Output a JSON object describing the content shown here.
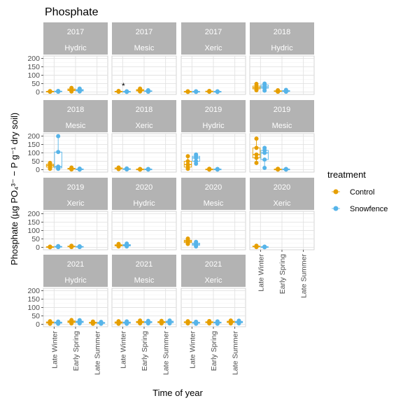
{
  "chart_data": {
    "type": "box",
    "title": "Phosphate",
    "xlabel": "Time of year",
    "ylabel": "Phosphate (µg PO₄³⁻ − P g⁻¹ dry soil)",
    "categories": [
      "Late Winter",
      "Early Spring",
      "Late Summer"
    ],
    "y_ticks": [
      0,
      50,
      100,
      150,
      200
    ],
    "ylim": [
      -15,
      215
    ],
    "grid": true,
    "legend": {
      "title": "treatment",
      "position": "right",
      "entries": [
        {
          "name": "Control",
          "color": "#E69F00"
        },
        {
          "name": "Snowfence",
          "color": "#56B4E9"
        }
      ]
    },
    "panels": [
      {
        "year": "2017",
        "site": "Hydric",
        "boxes": [
          {
            "category": "Late Winter",
            "treatment": "Control",
            "min": 1,
            "q1": 2,
            "median": 3,
            "q3": 4,
            "max": 5
          },
          {
            "category": "Late Winter",
            "treatment": "Snowfence",
            "min": 1,
            "q1": 2,
            "median": 3,
            "q3": 5,
            "max": 6
          },
          {
            "category": "Early Spring",
            "treatment": "Control",
            "min": 3,
            "q1": 8,
            "median": 12,
            "q3": 18,
            "max": 24
          },
          {
            "category": "Early Spring",
            "treatment": "Snowfence",
            "min": 3,
            "q1": 6,
            "median": 10,
            "q3": 14,
            "max": 20
          }
        ]
      },
      {
        "year": "2017",
        "site": "Mesic",
        "annotation": {
          "text": "*",
          "category": "Late Winter"
        },
        "boxes": [
          {
            "category": "Late Winter",
            "treatment": "Control",
            "min": 1,
            "q1": 2,
            "median": 3,
            "q3": 4,
            "max": 6
          },
          {
            "category": "Late Winter",
            "treatment": "Snowfence",
            "min": 0,
            "q1": 1,
            "median": 2,
            "q3": 3,
            "max": 4
          },
          {
            "category": "Early Spring",
            "treatment": "Control",
            "min": 3,
            "q1": 6,
            "median": 10,
            "q3": 14,
            "max": 20
          },
          {
            "category": "Early Spring",
            "treatment": "Snowfence",
            "min": 1,
            "q1": 3,
            "median": 5,
            "q3": 7,
            "max": 10
          }
        ]
      },
      {
        "year": "2017",
        "site": "Xeric",
        "boxes": [
          {
            "category": "Late Winter",
            "treatment": "Control",
            "min": 0,
            "q1": 1,
            "median": 2,
            "q3": 3,
            "max": 4
          },
          {
            "category": "Late Winter",
            "treatment": "Snowfence",
            "min": 0,
            "q1": 1,
            "median": 2,
            "q3": 3,
            "max": 4
          },
          {
            "category": "Early Spring",
            "treatment": "Control",
            "min": 1,
            "q1": 2,
            "median": 3,
            "q3": 5,
            "max": 6
          },
          {
            "category": "Early Spring",
            "treatment": "Snowfence",
            "min": 0,
            "q1": 1,
            "median": 2,
            "q3": 3,
            "max": 4
          }
        ]
      },
      {
        "year": "2018",
        "site": "Hydric",
        "boxes": [
          {
            "category": "Late Winter",
            "treatment": "Control",
            "min": 10,
            "q1": 18,
            "median": 25,
            "q3": 35,
            "max": 48
          },
          {
            "category": "Late Winter",
            "treatment": "Snowfence",
            "min": 8,
            "q1": 22,
            "median": 30,
            "q3": 42,
            "max": 50
          },
          {
            "category": "Early Spring",
            "treatment": "Control",
            "min": 1,
            "q1": 3,
            "median": 5,
            "q3": 7,
            "max": 10
          },
          {
            "category": "Early Spring",
            "treatment": "Snowfence",
            "min": 1,
            "q1": 3,
            "median": 5,
            "q3": 8,
            "max": 12
          }
        ]
      },
      {
        "year": "2018",
        "site": "Mesic",
        "boxes": [
          {
            "category": "Late Winter",
            "treatment": "Control",
            "min": 5,
            "q1": 15,
            "median": 25,
            "q3": 32,
            "max": 40
          },
          {
            "category": "Late Winter",
            "treatment": "Snowfence",
            "min": 5,
            "q1": 10,
            "median": 18,
            "q3": 105,
            "max": 200
          },
          {
            "category": "Early Spring",
            "treatment": "Control",
            "min": 1,
            "q1": 3,
            "median": 5,
            "q3": 8,
            "max": 12
          },
          {
            "category": "Early Spring",
            "treatment": "Snowfence",
            "min": 0,
            "q1": 1,
            "median": 3,
            "q3": 4,
            "max": 6
          }
        ]
      },
      {
        "year": "2018",
        "site": "Xeric",
        "boxes": [
          {
            "category": "Late Winter",
            "treatment": "Control",
            "min": 3,
            "q1": 5,
            "median": 8,
            "q3": 10,
            "max": 12
          },
          {
            "category": "Late Winter",
            "treatment": "Snowfence",
            "min": 1,
            "q1": 2,
            "median": 4,
            "q3": 5,
            "max": 7
          },
          {
            "category": "Early Spring",
            "treatment": "Control",
            "min": 0,
            "q1": 1,
            "median": 2,
            "q3": 3,
            "max": 4
          },
          {
            "category": "Early Spring",
            "treatment": "Snowfence",
            "min": 0,
            "q1": 1,
            "median": 2,
            "q3": 3,
            "max": 4
          }
        ]
      },
      {
        "year": "2019",
        "site": "Hydric",
        "boxes": [
          {
            "category": "Late Winter",
            "treatment": "Control",
            "min": 5,
            "q1": 15,
            "median": 30,
            "q3": 50,
            "max": 80
          },
          {
            "category": "Late Winter",
            "treatment": "Snowfence",
            "min": 35,
            "q1": 50,
            "median": 70,
            "q3": 80,
            "max": 90
          },
          {
            "category": "Early Spring",
            "treatment": "Control",
            "min": 0,
            "q1": 1,
            "median": 2,
            "q3": 3,
            "max": 5
          },
          {
            "category": "Early Spring",
            "treatment": "Snowfence",
            "min": 0,
            "q1": 1,
            "median": 2,
            "q3": 3,
            "max": 4
          }
        ]
      },
      {
        "year": "2019",
        "site": "Mesic",
        "boxes": [
          {
            "category": "Late Winter",
            "treatment": "Control",
            "min": 40,
            "q1": 70,
            "median": 90,
            "q3": 130,
            "max": 185
          },
          {
            "category": "Late Winter",
            "treatment": "Snowfence",
            "min": 10,
            "q1": 60,
            "median": 100,
            "q3": 115,
            "max": 130
          },
          {
            "category": "Early Spring",
            "treatment": "Control",
            "min": 0,
            "q1": 1,
            "median": 2,
            "q3": 3,
            "max": 5
          },
          {
            "category": "Early Spring",
            "treatment": "Snowfence",
            "min": 0,
            "q1": 1,
            "median": 2,
            "q3": 3,
            "max": 4
          }
        ]
      },
      {
        "year": "2019",
        "site": "Xeric",
        "boxes": [
          {
            "category": "Late Winter",
            "treatment": "Control",
            "min": 0,
            "q1": 1,
            "median": 2,
            "q3": 3,
            "max": 4
          },
          {
            "category": "Late Winter",
            "treatment": "Snowfence",
            "min": 1,
            "q1": 2,
            "median": 4,
            "q3": 5,
            "max": 7
          },
          {
            "category": "Early Spring",
            "treatment": "Control",
            "min": 1,
            "q1": 3,
            "median": 5,
            "q3": 7,
            "max": 9
          },
          {
            "category": "Early Spring",
            "treatment": "Snowfence",
            "min": 1,
            "q1": 2,
            "median": 3,
            "q3": 5,
            "max": 6
          }
        ]
      },
      {
        "year": "2020",
        "site": "Hydric",
        "boxes": [
          {
            "category": "Late Winter",
            "treatment": "Control",
            "min": 5,
            "q1": 8,
            "median": 12,
            "q3": 15,
            "max": 20
          },
          {
            "category": "Late Winter",
            "treatment": "Snowfence",
            "min": 5,
            "q1": 8,
            "median": 12,
            "q3": 16,
            "max": 22
          }
        ]
      },
      {
        "year": "2020",
        "site": "Mesic",
        "boxes": [
          {
            "category": "Late Winter",
            "treatment": "Control",
            "min": 20,
            "q1": 28,
            "median": 35,
            "q3": 42,
            "max": 52
          },
          {
            "category": "Late Winter",
            "treatment": "Snowfence",
            "min": 5,
            "q1": 12,
            "median": 18,
            "q3": 25,
            "max": 32
          }
        ]
      },
      {
        "year": "2020",
        "site": "Xeric",
        "boxes": [
          {
            "category": "Late Winter",
            "treatment": "Control",
            "min": 1,
            "q1": 3,
            "median": 5,
            "q3": 7,
            "max": 9
          },
          {
            "category": "Late Winter",
            "treatment": "Snowfence",
            "min": 0,
            "q1": 1,
            "median": 2,
            "q3": 3,
            "max": 4
          }
        ]
      },
      {
        "year": "2021",
        "site": "Hydric",
        "boxes": [
          {
            "category": "Late Winter",
            "treatment": "Control",
            "min": 3,
            "q1": 7,
            "median": 10,
            "q3": 14,
            "max": 18
          },
          {
            "category": "Late Winter",
            "treatment": "Snowfence",
            "min": 3,
            "q1": 6,
            "median": 9,
            "q3": 13,
            "max": 16
          },
          {
            "category": "Early Spring",
            "treatment": "Control",
            "min": 5,
            "q1": 10,
            "median": 15,
            "q3": 20,
            "max": 25
          },
          {
            "category": "Early Spring",
            "treatment": "Snowfence",
            "min": 5,
            "q1": 10,
            "median": 14,
            "q3": 18,
            "max": 24
          },
          {
            "category": "Late Summer",
            "treatment": "Control",
            "min": 3,
            "q1": 6,
            "median": 9,
            "q3": 12,
            "max": 16
          },
          {
            "category": "Late Summer",
            "treatment": "Snowfence",
            "min": 3,
            "q1": 5,
            "median": 8,
            "q3": 11,
            "max": 14
          }
        ]
      },
      {
        "year": "2021",
        "site": "Mesic",
        "boxes": [
          {
            "category": "Late Winter",
            "treatment": "Control",
            "min": 3,
            "q1": 6,
            "median": 10,
            "q3": 14,
            "max": 18
          },
          {
            "category": "Late Winter",
            "treatment": "Snowfence",
            "min": 3,
            "q1": 6,
            "median": 10,
            "q3": 13,
            "max": 17
          },
          {
            "category": "Early Spring",
            "treatment": "Control",
            "min": 5,
            "q1": 9,
            "median": 13,
            "q3": 17,
            "max": 22
          },
          {
            "category": "Early Spring",
            "treatment": "Snowfence",
            "min": 5,
            "q1": 9,
            "median": 12,
            "q3": 16,
            "max": 20
          },
          {
            "category": "Late Summer",
            "treatment": "Control",
            "min": 5,
            "q1": 9,
            "median": 13,
            "q3": 16,
            "max": 20
          },
          {
            "category": "Late Summer",
            "treatment": "Snowfence",
            "min": 5,
            "q1": 9,
            "median": 14,
            "q3": 18,
            "max": 22
          }
        ]
      },
      {
        "year": "2021",
        "site": "Xeric",
        "boxes": [
          {
            "category": "Late Winter",
            "treatment": "Control",
            "min": 5,
            "q1": 9,
            "median": 12,
            "q3": 15,
            "max": 18
          },
          {
            "category": "Late Winter",
            "treatment": "Snowfence",
            "min": 3,
            "q1": 6,
            "median": 9,
            "q3": 12,
            "max": 15
          },
          {
            "category": "Early Spring",
            "treatment": "Control",
            "min": 5,
            "q1": 9,
            "median": 12,
            "q3": 15,
            "max": 19
          },
          {
            "category": "Early Spring",
            "treatment": "Snowfence",
            "min": 3,
            "q1": 7,
            "median": 10,
            "q3": 13,
            "max": 17
          },
          {
            "category": "Late Summer",
            "treatment": "Control",
            "min": 5,
            "q1": 10,
            "median": 14,
            "q3": 18,
            "max": 22
          },
          {
            "category": "Late Summer",
            "treatment": "Snowfence",
            "min": 5,
            "q1": 9,
            "median": 13,
            "q3": 17,
            "max": 21
          }
        ]
      }
    ]
  }
}
